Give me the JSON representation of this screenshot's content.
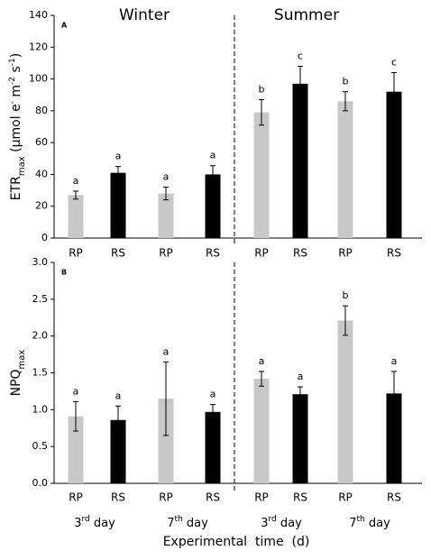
{
  "chart_data": [
    {
      "type": "bar",
      "panel": "A",
      "season_labels": [
        "Winter",
        "Summer"
      ],
      "y_label": [
        {
          "text": "ETR"
        },
        {
          "sub": "max"
        },
        {
          "text": " (µmol e"
        },
        {
          "sup": "-"
        },
        {
          "text": " m"
        },
        {
          "sup": "-2"
        },
        {
          "text": " s"
        },
        {
          "sup": "-1"
        },
        {
          "text": ")"
        }
      ],
      "categories": [
        "RP",
        "RS",
        "RP",
        "RS",
        "RP",
        "RS",
        "RP",
        "RS"
      ],
      "values": [
        27,
        41,
        28,
        40,
        79,
        97,
        86,
        92
      ],
      "errors": [
        2.5,
        4,
        4,
        5.5,
        8,
        11,
        6,
        12
      ],
      "letters": [
        "a",
        "a",
        "a",
        "a",
        "b",
        "c",
        "b",
        "c"
      ],
      "colors": [
        "#c8c8c8",
        "#000000",
        "#c8c8c8",
        "#000000",
        "#c8c8c8",
        "#000000",
        "#c8c8c8",
        "#000000"
      ],
      "ylim": [
        0,
        140
      ],
      "yticks": [
        0,
        20,
        40,
        60,
        80,
        100,
        120,
        140
      ]
    },
    {
      "type": "bar",
      "panel": "B",
      "y_label": [
        {
          "text": "NPQ"
        },
        {
          "sub": "max"
        }
      ],
      "categories": [
        "RP",
        "RS",
        "RP",
        "RS",
        "RP",
        "RS",
        "RP",
        "RS"
      ],
      "values": [
        0.91,
        0.86,
        1.15,
        0.97,
        1.42,
        1.21,
        2.21,
        1.22
      ],
      "errors": [
        0.2,
        0.19,
        0.5,
        0.1,
        0.1,
        0.1,
        0.2,
        0.3
      ],
      "letters": [
        "a",
        "a",
        "a",
        "a",
        "a",
        "a",
        "b",
        "a"
      ],
      "colors": [
        "#c8c8c8",
        "#000000",
        "#c8c8c8",
        "#000000",
        "#c8c8c8",
        "#000000",
        "#c8c8c8",
        "#000000"
      ],
      "ylim": [
        0,
        3
      ],
      "yticks": [
        {
          "value": 0,
          "label": "0.0"
        },
        {
          "value": 0.5,
          "label": "0.5"
        },
        {
          "value": 1,
          "label": "1.0"
        },
        {
          "value": 1.5,
          "label": "1.5"
        },
        {
          "value": 2,
          "label": "2.0"
        },
        {
          "value": 2.5,
          "label": "2.5"
        },
        {
          "value": 3,
          "label": "3.0"
        }
      ],
      "groups": [
        {
          "num": "3",
          "sup": "rd",
          "text": " day"
        },
        {
          "num": "7",
          "sup": "th",
          "text": " day"
        },
        {
          "num": "3",
          "sup": "rd",
          "text": " day"
        },
        {
          "num": "7",
          "sup": "th",
          "text": " day"
        }
      ],
      "x_label": "Experimental  time  (d)"
    }
  ]
}
